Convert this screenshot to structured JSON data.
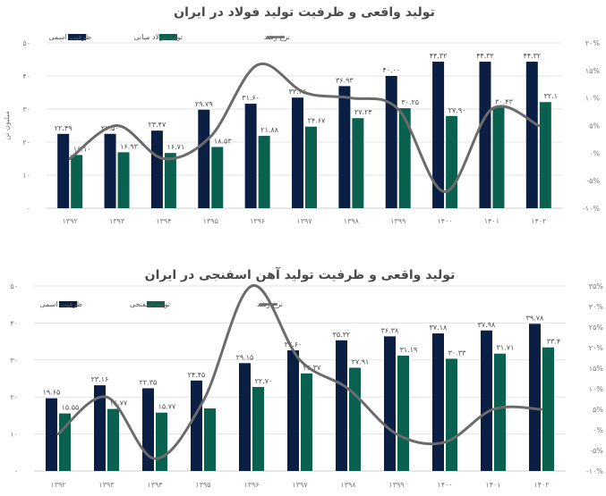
{
  "colors": {
    "capacity": "#0b1f44",
    "production": "#0b6150",
    "growth": "#6b6b6b",
    "grid": "#e3e3e3"
  },
  "chart_data": [
    {
      "type": "bar",
      "title": "تولید واقعی و ظرفیت تولید فولاد در ایران",
      "ylabel": "میلیون تن",
      "categories": [
        "۱۳۹۲",
        "۱۳۹۳",
        "۱۳۹۴",
        "۱۳۹۵",
        "۱۳۹۶",
        "۱۳۹۷",
        "۱۳۹۸",
        "۱۳۹۹",
        "۱۴۰۰",
        "۱۴۰۱",
        "۱۴۰۲"
      ],
      "series": [
        {
          "name": "ظرفیت اسمی",
          "values": [
            22.49,
            22.5,
            23.47,
            29.79,
            31.6,
            33.46,
            36.93,
            40.0,
            44.32,
            44.32,
            44.32
          ],
          "labels": [
            "۲۲.۴۹",
            "۲۲.۵۰",
            "۲۳.۴۷",
            "۲۹.۷۹",
            "۳۱.۶۰",
            "۳۳.۴۶",
            "۳۶.۹۳",
            "۴۰.۰۰",
            "۴۴.۳۲",
            "۴۴.۳۲",
            "۴۴.۳۲"
          ]
        },
        {
          "name": "تولید فولاد میانی",
          "values": [
            16.1,
            16.93,
            16.71,
            18.53,
            21.88,
            24.67,
            27.24,
            30.25,
            27.9,
            30.43,
            32.1
          ],
          "labels": [
            "۱۶.۱۰",
            "۱۶.۹۳",
            "۱۶.۷۱",
            "۱۸.۵۳",
            "۲۱.۸۸",
            "۲۴.۶۷",
            "۲۷.۲۴",
            "۳۰.۲۵",
            "۲۷.۹۰",
            "۳۰.۴۳",
            "۳۲.۱"
          ]
        },
        {
          "name": "نرخ رشد",
          "axis": "right",
          "values": [
            -1,
            5,
            -1,
            3,
            16,
            11,
            10,
            8,
            -7,
            8,
            5
          ]
        }
      ],
      "ylim": [
        0,
        50
      ],
      "y_ticks": [
        "۰",
        "۱۰",
        "۲۰",
        "۳۰",
        "۴۰",
        "۵۰"
      ],
      "y2lim": [
        -10,
        20
      ],
      "y2_ticks": [
        "-۱۰%",
        "-۵%",
        "۰%",
        "۵%",
        "۱۰%",
        "۱۵%",
        "۲۰%"
      ],
      "legend": "top-left"
    },
    {
      "type": "bar",
      "title": "تولید واقعی و ظرفیت تولید آهن اسفنجی در ایران",
      "ylabel": "",
      "categories": [
        "۱۳۹۲",
        "۱۳۹۳",
        "۱۳۹۴",
        "۱۳۹۵",
        "۱۳۹۶",
        "۱۳۹۷",
        "۱۳۹۸",
        "۱۳۹۹",
        "۱۴۰۰",
        "۱۴۰۱",
        "۱۴۰۲"
      ],
      "series": [
        {
          "name": "ظرفیت اسمی",
          "values": [
            19.65,
            23.16,
            22.35,
            24.45,
            29.15,
            32.6,
            35.32,
            36.38,
            37.18,
            37.98,
            39.78
          ],
          "labels": [
            "۱۹.۶۵",
            "۲۳.۱۶",
            "۲۲.۳۵",
            "۲۴.۴۵",
            "۲۹.۱۵",
            "۳۲.۶۰",
            "۳۵.۳۲",
            "۳۶.۳۸",
            "۳۷.۱۸",
            "۳۷.۹۸",
            "۳۹.۷۸"
          ]
        },
        {
          "name": "تولید  اسفنجی",
          "values": [
            15.55,
            16.77,
            15.77,
            16.9,
            22.7,
            26.37,
            27.91,
            31.19,
            30.33,
            31.71,
            33.4
          ],
          "labels": [
            "۱۵.۵۵",
            "۱۶.۷۷",
            "۱۵.۷۷",
            "",
            "۲۲.۷۰",
            "۲۶.۳۷",
            "۲۷.۹۱",
            "۳۱.۱۹",
            "۳۰.۳۳",
            "۳۱.۷۱",
            "۳۳.۴"
          ]
        },
        {
          "name": "نرخ رشد",
          "axis": "right",
          "values": [
            -1,
            8,
            -7,
            7,
            35,
            17,
            10,
            -1,
            -3,
            5,
            5
          ]
        }
      ],
      "ylim": [
        0,
        50
      ],
      "y_ticks": [
        "۰",
        "۱۰",
        "۲۰",
        "۳۰",
        "۴۰",
        "۵۰"
      ],
      "y2lim": [
        -10,
        35
      ],
      "y2_ticks": [
        "-۱۰%",
        "-۵%",
        "۰%",
        "۵%",
        "۱۰%",
        "۱۵%",
        "۲۰%",
        "۲۵%",
        "۳۰%",
        "۳۵%"
      ],
      "legend": "top-left"
    }
  ]
}
